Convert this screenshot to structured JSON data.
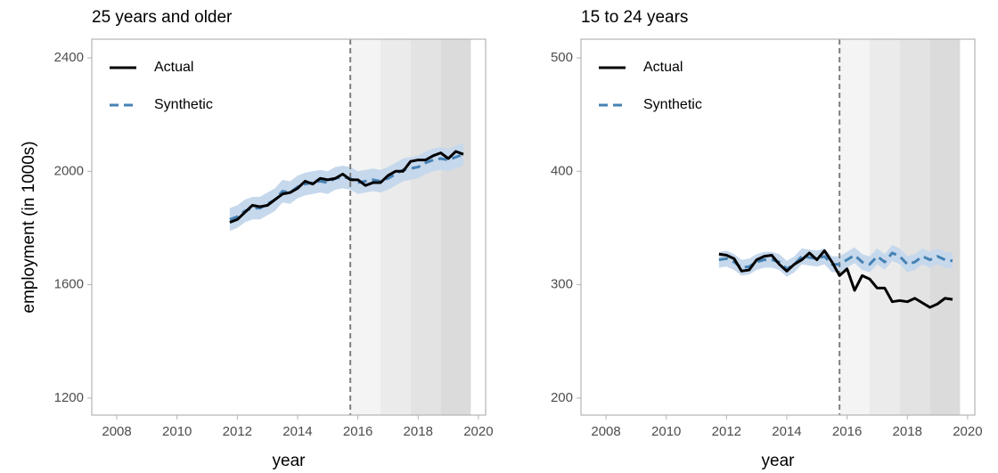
{
  "chart_data": [
    {
      "type": "line",
      "title": "25 years and older",
      "y_label": "employment (in 1000s)",
      "x_label": "year",
      "x": [
        2011.75,
        2012,
        2012.25,
        2012.5,
        2012.75,
        2013,
        2013.25,
        2013.5,
        2013.75,
        2014,
        2014.25,
        2014.5,
        2014.75,
        2015,
        2015.25,
        2015.5,
        2015.75,
        2016,
        2016.25,
        2016.5,
        2016.75,
        2017,
        2017.25,
        2017.5,
        2017.75,
        2018,
        2018.25,
        2018.5,
        2018.75,
        2019,
        2019.25,
        2019.5
      ],
      "series": [
        {
          "name": "Actual",
          "color": "#000000",
          "dash": false,
          "values": [
            1820,
            1830,
            1855,
            1880,
            1875,
            1880,
            1900,
            1920,
            1925,
            1940,
            1965,
            1955,
            1975,
            1970,
            1975,
            1990,
            1970,
            1970,
            1950,
            1960,
            1960,
            1985,
            2000,
            2000,
            2035,
            2040,
            2040,
            2055,
            2065,
            2045,
            2070,
            2060
          ]
        },
        {
          "name": "Synthetic",
          "color": "#4682b4",
          "dash": true,
          "band_color": "#c6d8ec",
          "values": [
            1830,
            1840,
            1860,
            1870,
            1870,
            1885,
            1900,
            1930,
            1925,
            1945,
            1955,
            1960,
            1965,
            1960,
            1975,
            1980,
            1975,
            1960,
            1965,
            1970,
            1965,
            1975,
            1990,
            2005,
            2010,
            2015,
            2030,
            2040,
            2045,
            2040,
            2050,
            2060
          ],
          "lower": [
            1790,
            1800,
            1820,
            1830,
            1830,
            1845,
            1860,
            1890,
            1885,
            1905,
            1915,
            1920,
            1925,
            1920,
            1935,
            1940,
            1935,
            1920,
            1925,
            1930,
            1925,
            1935,
            1950,
            1965,
            1970,
            1975,
            1990,
            2000,
            2005,
            2000,
            2010,
            2020
          ],
          "upper": [
            1870,
            1880,
            1900,
            1910,
            1910,
            1925,
            1940,
            1970,
            1965,
            1985,
            1995,
            2000,
            2005,
            2000,
            2015,
            2020,
            2015,
            2000,
            2005,
            2010,
            2005,
            2015,
            2030,
            2045,
            2050,
            2055,
            2070,
            2080,
            2085,
            2080,
            2090,
            2100
          ]
        }
      ],
      "xlim": [
        2007.17,
        2020.24
      ],
      "xticks": [
        2008,
        2010,
        2012,
        2014,
        2016,
        2018,
        2020
      ],
      "ylim": [
        1140,
        2466
      ],
      "yticks": [
        1200,
        1600,
        2000,
        2400
      ],
      "vline": 2015.75,
      "shading": [
        {
          "x": [
            2015.75,
            2016.75
          ],
          "color": "#f4f4f4"
        },
        {
          "x": [
            2016.75,
            2017.75
          ],
          "color": "#ebebeb"
        },
        {
          "x": [
            2017.75,
            2018.75
          ],
          "color": "#e3e3e3"
        },
        {
          "x": [
            2018.75,
            2019.75
          ],
          "color": "#dbdbdb"
        }
      ]
    },
    {
      "type": "line",
      "title": "15 to 24 years",
      "x_label": "year",
      "x": [
        2011.75,
        2012,
        2012.25,
        2012.5,
        2012.75,
        2013,
        2013.25,
        2013.5,
        2013.75,
        2014,
        2014.25,
        2014.5,
        2014.75,
        2015,
        2015.25,
        2015.5,
        2015.75,
        2016,
        2016.25,
        2016.5,
        2016.75,
        2017,
        2017.25,
        2017.5,
        2017.75,
        2018,
        2018.25,
        2018.5,
        2018.75,
        2019,
        2019.25,
        2019.5
      ],
      "series": [
        {
          "name": "Actual",
          "color": "#000000",
          "dash": false,
          "values": [
            327,
            326,
            323,
            312,
            313,
            322,
            325,
            326,
            318,
            312,
            318,
            322,
            328,
            322,
            330,
            320,
            308,
            314,
            295,
            308,
            305,
            297,
            297,
            285,
            286,
            285,
            288,
            284,
            280,
            283,
            288,
            287
          ]
        },
        {
          "name": "Synthetic",
          "color": "#4682b4",
          "dash": true,
          "band_color": "#c6d8ec",
          "values": [
            322,
            323,
            320,
            315,
            316,
            320,
            322,
            322,
            320,
            314,
            318,
            325,
            324,
            323,
            325,
            318,
            318,
            322,
            326,
            320,
            318,
            325,
            320,
            328,
            325,
            318,
            320,
            325,
            322,
            325,
            322,
            321
          ],
          "lower": [
            315,
            316,
            313,
            308,
            309,
            313,
            315,
            315,
            313,
            307,
            311,
            318,
            317,
            316,
            318,
            311,
            311,
            315,
            319,
            313,
            311,
            318,
            313,
            321,
            318,
            311,
            313,
            318,
            315,
            318,
            315,
            314
          ],
          "upper": [
            329,
            330,
            327,
            322,
            323,
            327,
            329,
            329,
            327,
            321,
            325,
            332,
            331,
            330,
            332,
            325,
            325,
            329,
            333,
            327,
            325,
            332,
            327,
            335,
            332,
            325,
            327,
            332,
            329,
            332,
            329,
            328
          ]
        }
      ],
      "xlim": [
        2007.17,
        2020.24
      ],
      "xticks": [
        2008,
        2010,
        2012,
        2014,
        2016,
        2018,
        2020
      ],
      "ylim": [
        185,
        516.5
      ],
      "yticks": [
        200,
        300,
        400,
        500
      ],
      "vline": 2015.75,
      "shading": [
        {
          "x": [
            2015.75,
            2016.75
          ],
          "color": "#f4f4f4"
        },
        {
          "x": [
            2016.75,
            2017.75
          ],
          "color": "#ebebeb"
        },
        {
          "x": [
            2017.75,
            2018.75
          ],
          "color": "#e3e3e3"
        },
        {
          "x": [
            2018.75,
            2019.75
          ],
          "color": "#dbdbdb"
        }
      ]
    }
  ]
}
